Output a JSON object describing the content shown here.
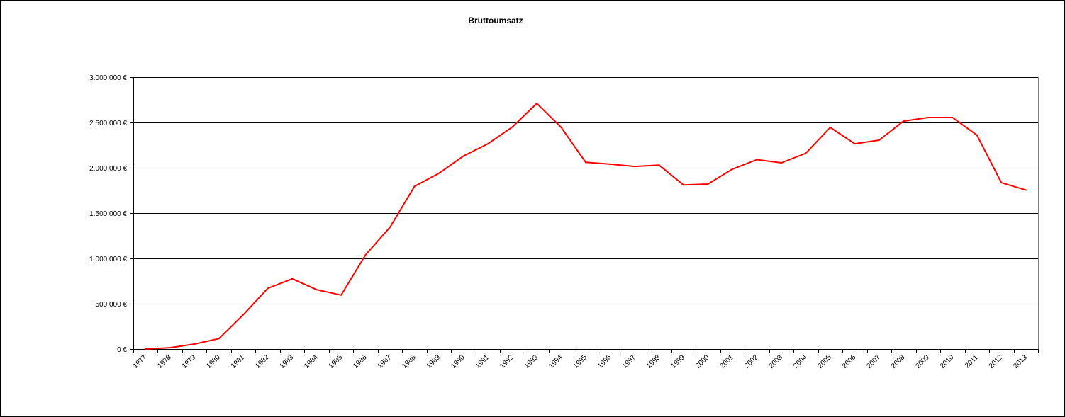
{
  "chart_data": {
    "type": "line",
    "title": "Bruttoumsatz",
    "xlabel": "",
    "ylabel": "",
    "ylim": [
      0,
      3000000
    ],
    "yticks": [
      0,
      500000,
      1000000,
      1500000,
      2000000,
      2500000,
      3000000
    ],
    "ytick_labels": [
      "0 €",
      "500.000 €",
      "1.000.000 €",
      "1.500.000 €",
      "2.000.000 €",
      "2.500.000 €",
      "3.000.000 €"
    ],
    "categories": [
      "1977",
      "1978",
      "1979",
      "1980",
      "1981",
      "1982",
      "1983",
      "1984",
      "1985",
      "1986",
      "1987",
      "1988",
      "1989",
      "1990",
      "1991",
      "1992",
      "1993",
      "1994",
      "1995",
      "1996",
      "1997",
      "1998",
      "1999",
      "2000",
      "2001",
      "2002",
      "2003",
      "2004",
      "2005",
      "2006",
      "2007",
      "2008",
      "2009",
      "2010",
      "2011",
      "2012",
      "2013"
    ],
    "series": [
      {
        "color": "#ff0000",
        "values": [
          0,
          15000,
          55000,
          115000,
          380000,
          670000,
          775000,
          655000,
          595000,
          1040000,
          1345000,
          1795000,
          1940000,
          2130000,
          2265000,
          2450000,
          2710000,
          2445000,
          2060000,
          2040000,
          2015000,
          2030000,
          1810000,
          1820000,
          1985000,
          2090000,
          2055000,
          2160000,
          2445000,
          2265000,
          2305000,
          2515000,
          2555000,
          2555000,
          2360000,
          1835000,
          1755000
        ]
      }
    ],
    "grid": true,
    "grid_color": "#000000",
    "legend": "none"
  }
}
